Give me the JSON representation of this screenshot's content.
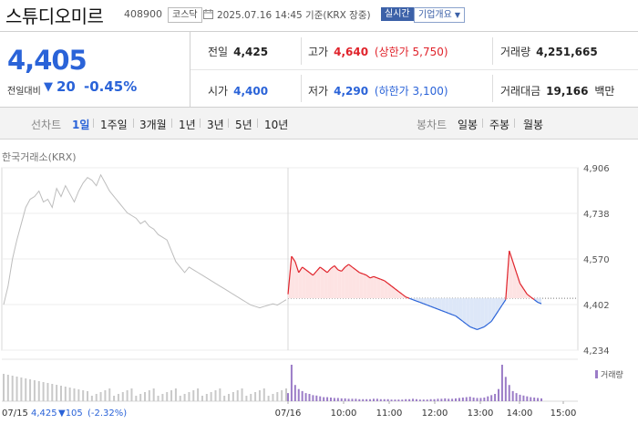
{
  "header": {
    "name": "스튜디오미르",
    "code": "408900",
    "market": "코스닥",
    "datetime": "2025.07.16 14:45 기준(KRX 장중)",
    "realtime_badge": "실시간",
    "company_button": "기업개요",
    "company_caret": "▼"
  },
  "quote": {
    "price": "4,405",
    "change_label": "전일대비",
    "change_arrow": "▼",
    "change_value": "20",
    "change_pct": "-0.45%",
    "stats": [
      {
        "label": "전일",
        "value": "4,425",
        "color": "#222222"
      },
      {
        "label": "고가",
        "value": "4,640",
        "extra": "(상한가 5,750)",
        "color": "#e0232b"
      },
      {
        "label": "거래량",
        "value": "4,251,665",
        "color": "#222222"
      },
      {
        "label": "시가",
        "value": "4,400",
        "color": "#2a63d8"
      },
      {
        "label": "저가",
        "value": "4,290",
        "extra": "(하한가 3,100)",
        "color": "#2a63d8"
      },
      {
        "label": "거래대금",
        "value": "19,166",
        "unit": "백만",
        "color": "#222222"
      }
    ]
  },
  "toolbar": {
    "line_label": "선차트",
    "line_periods": [
      "1일",
      "1주일",
      "3개월",
      "1년",
      "3년",
      "5년",
      "10년"
    ],
    "selected_period": "1일",
    "candle_label": "봉차트",
    "candle_periods": [
      "일봉",
      "주봉",
      "월봉"
    ]
  },
  "chart_data": {
    "type": "line",
    "source_label": "한국거래소(KRX)",
    "y_ticks": [
      "4,906",
      "4,738",
      "4,570",
      "4,402",
      "4,234"
    ],
    "y_tick_values": [
      4906,
      4738,
      4570,
      4402,
      4234
    ],
    "ylim": [
      4234,
      4906
    ],
    "x_ticks": [
      "07/16",
      "10:00",
      "11:00",
      "12:00",
      "13:00",
      "14:00",
      "15:00"
    ],
    "baseline": 4425,
    "volume_label": "거래량",
    "previous_day": {
      "date": "07/15",
      "close": "4,425",
      "change_arrow": "▼",
      "change": "105",
      "change_pct": "(-2.32%)",
      "series": [
        4402,
        4470,
        4570,
        4640,
        4700,
        4760,
        4790,
        4800,
        4820,
        4780,
        4790,
        4760,
        4830,
        4800,
        4840,
        4810,
        4780,
        4820,
        4850,
        4870,
        4860,
        4840,
        4880,
        4850,
        4820,
        4800,
        4780,
        4760,
        4740,
        4730,
        4720,
        4700,
        4710,
        4690,
        4680,
        4660,
        4650,
        4640,
        4600,
        4560,
        4540,
        4520,
        4540,
        4530,
        4520,
        4510,
        4500,
        4490,
        4480,
        4470,
        4460,
        4450,
        4440,
        4430,
        4420,
        4410,
        4400,
        4395,
        4390,
        4395,
        4400,
        4405,
        4400,
        4410,
        4420
      ]
    },
    "today": {
      "series": [
        4440,
        4580,
        4560,
        4520,
        4540,
        4530,
        4520,
        4510,
        4525,
        4540,
        4530,
        4520,
        4535,
        4545,
        4530,
        4525,
        4540,
        4550,
        4540,
        4530,
        4520,
        4515,
        4510,
        4500,
        4505,
        4500,
        4495,
        4490,
        4480,
        4470,
        4460,
        4450,
        4440,
        4430,
        4425,
        4420,
        4415,
        4410,
        4405,
        4400,
        4395,
        4390,
        4385,
        4380,
        4375,
        4370,
        4365,
        4360,
        4350,
        4340,
        4330,
        4320,
        4315,
        4310,
        4315,
        4320,
        4330,
        4340,
        4360,
        4380,
        4400,
        4420,
        4600,
        4560,
        4520,
        4480,
        4460,
        4440,
        4430,
        4420,
        4410,
        4405
      ],
      "end_index_fraction": 0.63
    },
    "volume_today": [
      20,
      90,
      40,
      30,
      25,
      20,
      18,
      15,
      14,
      12,
      10,
      10,
      9,
      8,
      8,
      7,
      7,
      6,
      6,
      6,
      5,
      5,
      5,
      5,
      6,
      6,
      5,
      5,
      5,
      4,
      4,
      4,
      4,
      5,
      5,
      6,
      5,
      4,
      4,
      4,
      5,
      5,
      6,
      6,
      7,
      6,
      6,
      7,
      8,
      9,
      10,
      11,
      9,
      8,
      8,
      9,
      12,
      15,
      18,
      30,
      90,
      60,
      40,
      25,
      20,
      16,
      14,
      12,
      10,
      9,
      8,
      7
    ],
    "colors": {
      "up": "#e0232b",
      "down": "#2a63d8",
      "prev": "#bdbdbd",
      "up_fill": "#fde3e3",
      "down_fill": "#dde7f8"
    }
  }
}
